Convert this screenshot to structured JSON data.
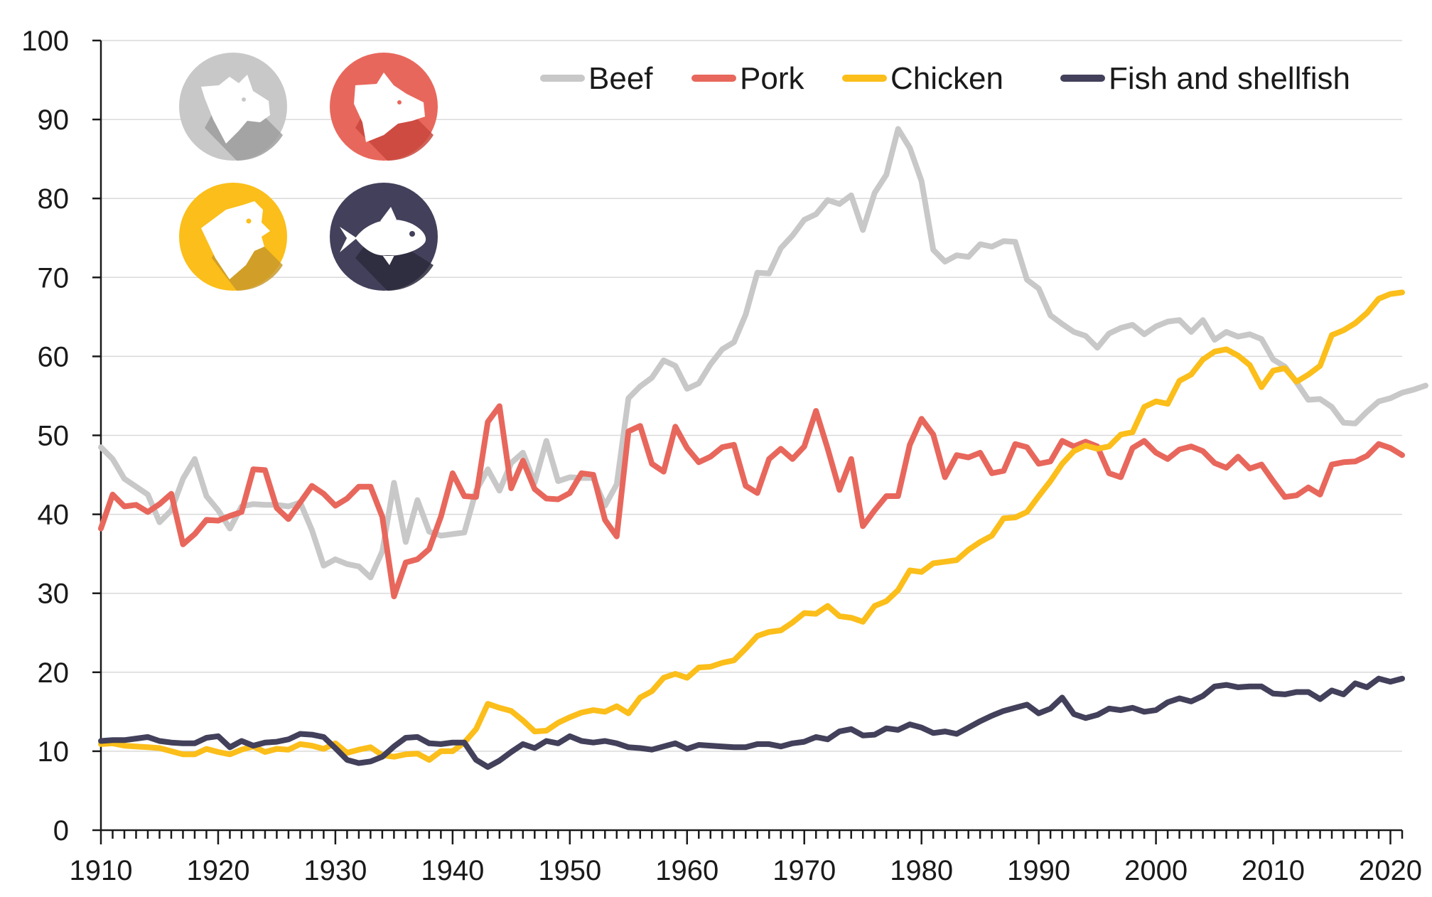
{
  "chart_data": {
    "type": "line",
    "title": "",
    "xlabel": "",
    "ylabel": "",
    "xlim": [
      1910,
      2021
    ],
    "ylim": [
      0,
      100
    ],
    "y_ticks": [
      0,
      10,
      20,
      30,
      40,
      50,
      60,
      70,
      80,
      90,
      100
    ],
    "x_ticks": [
      1910,
      1920,
      1930,
      1940,
      1950,
      1960,
      1970,
      1980,
      1990,
      2000,
      2010,
      2020
    ],
    "grid": true,
    "legend_position": "top-right",
    "series": [
      {
        "name": "Beef",
        "color": "#c8c8c8",
        "icon": "cow-icon",
        "x_start": 1910,
        "values": [
          48.5,
          47.0,
          44.5,
          43.5,
          42.5,
          39.0,
          40.5,
          44.5,
          47.0,
          42.3,
          40.5,
          38.2,
          41.0,
          41.3,
          41.2,
          41.2,
          41.0,
          41.5,
          38.0,
          33.5,
          34.3,
          33.7,
          33.4,
          32.0,
          35.3,
          44.0,
          36.5,
          41.8,
          37.8,
          37.3,
          37.5,
          37.7,
          43.0,
          45.7,
          43.0,
          46.5,
          47.8,
          44.0,
          49.3,
          44.2,
          44.7,
          44.6,
          44.6,
          41.1,
          43.8,
          54.7,
          56.2,
          57.3,
          59.5,
          58.8,
          55.9,
          56.6,
          59.0,
          60.9,
          61.8,
          65.3,
          70.6,
          70.5,
          73.7,
          75.3,
          77.3,
          78.0,
          79.8,
          79.3,
          80.4,
          76.0,
          80.7,
          83.0,
          88.8,
          86.4,
          82.2,
          73.5,
          72.0,
          72.8,
          72.6,
          74.2,
          73.9,
          74.6,
          74.5,
          69.7,
          68.6,
          65.2,
          64.1,
          63.1,
          62.6,
          61.1,
          62.9,
          63.6,
          64.0,
          62.8,
          63.8,
          64.4,
          64.6,
          63.1,
          64.6,
          62.1,
          63.1,
          62.5,
          62.8,
          62.2,
          59.6,
          58.7,
          56.7,
          54.5,
          54.6,
          53.6,
          51.6,
          51.5,
          53.0,
          54.3,
          54.7,
          55.4,
          55.8,
          56.3
        ]
      },
      {
        "name": "Pork",
        "color": "#e8675c",
        "icon": "pig-icon",
        "x_start": 1910,
        "values": [
          38.2,
          42.5,
          41.0,
          41.2,
          40.3,
          41.3,
          42.6,
          36.2,
          37.5,
          39.3,
          39.2,
          39.8,
          40.3,
          45.7,
          45.6,
          40.8,
          39.4,
          41.5,
          43.6,
          42.6,
          41.1,
          42.0,
          43.5,
          43.5,
          39.7,
          29.6,
          33.9,
          34.3,
          35.6,
          39.7,
          45.2,
          42.3,
          42.2,
          51.7,
          53.7,
          43.3,
          46.8,
          43.2,
          42.0,
          41.9,
          42.7,
          45.2,
          45.0,
          39.3,
          37.2,
          50.5,
          51.2,
          46.4,
          45.4,
          51.1,
          48.4,
          46.6,
          47.3,
          48.5,
          48.8,
          43.6,
          42.7,
          47.0,
          48.3,
          47.0,
          48.6,
          53.1,
          48.3,
          43.1,
          47.0,
          38.5,
          40.5,
          42.3,
          42.3,
          48.8,
          52.1,
          50.1,
          44.7,
          47.5,
          47.2,
          47.8,
          45.2,
          45.5,
          48.9,
          48.5,
          46.4,
          46.7,
          49.3,
          48.6,
          49.2,
          48.6,
          45.2,
          44.7,
          48.4,
          49.3,
          47.8,
          47.0,
          48.2,
          48.6,
          48.0,
          46.5,
          45.9,
          47.3,
          45.8,
          46.3,
          44.2,
          42.2,
          42.4,
          43.4,
          42.5,
          46.3,
          46.6,
          46.7,
          47.4,
          48.9,
          48.4,
          47.5
        ]
      },
      {
        "name": "Chicken",
        "color": "#fbbe1a",
        "icon": "chicken-icon",
        "x_start": 1910,
        "values": [
          10.9,
          11.0,
          10.7,
          10.6,
          10.5,
          10.4,
          10.0,
          9.6,
          9.6,
          10.3,
          9.9,
          9.6,
          10.2,
          10.6,
          9.9,
          10.3,
          10.2,
          10.9,
          10.7,
          10.3,
          11.0,
          9.8,
          10.2,
          10.5,
          9.5,
          9.3,
          9.6,
          9.7,
          8.9,
          10.0,
          10.0,
          11.1,
          12.8,
          16.0,
          15.5,
          15.1,
          13.9,
          12.5,
          12.6,
          13.6,
          14.3,
          14.9,
          15.2,
          15.0,
          15.7,
          14.8,
          16.8,
          17.6,
          19.3,
          19.8,
          19.3,
          20.6,
          20.7,
          21.2,
          21.5,
          23.0,
          24.6,
          25.1,
          25.3,
          26.3,
          27.5,
          27.4,
          28.4,
          27.1,
          26.9,
          26.4,
          28.4,
          29.0,
          30.4,
          32.9,
          32.7,
          33.8,
          34.0,
          34.2,
          35.5,
          36.5,
          37.3,
          39.5,
          39.6,
          40.3,
          42.3,
          44.2,
          46.4,
          48.0,
          48.7,
          48.3,
          48.6,
          50.1,
          50.4,
          53.6,
          54.3,
          54.0,
          56.9,
          57.7,
          59.6,
          60.6,
          60.9,
          60.1,
          58.9,
          56.1,
          58.2,
          58.5,
          56.8,
          57.7,
          58.8,
          62.7,
          63.3,
          64.2,
          65.5,
          67.3,
          67.9,
          68.1
        ]
      },
      {
        "name": "Fish and shellfish",
        "color": "#42405a",
        "icon": "fish-icon",
        "x_start": 1910,
        "values": [
          11.3,
          11.4,
          11.4,
          11.6,
          11.8,
          11.3,
          11.1,
          11.0,
          11.0,
          11.7,
          11.9,
          10.5,
          11.3,
          10.7,
          11.1,
          11.2,
          11.5,
          12.2,
          12.1,
          11.8,
          10.4,
          8.9,
          8.5,
          8.7,
          9.3,
          10.6,
          11.7,
          11.8,
          11.0,
          10.9,
          11.1,
          11.1,
          8.9,
          8.0,
          8.8,
          9.9,
          10.9,
          10.4,
          11.3,
          11.0,
          11.9,
          11.3,
          11.1,
          11.3,
          11.0,
          10.5,
          10.4,
          10.2,
          10.6,
          11.0,
          10.3,
          10.8,
          10.7,
          10.6,
          10.5,
          10.5,
          10.9,
          10.9,
          10.6,
          11.0,
          11.2,
          11.8,
          11.5,
          12.5,
          12.8,
          12.0,
          12.1,
          12.9,
          12.7,
          13.4,
          13.0,
          12.3,
          12.5,
          12.2,
          13.0,
          13.8,
          14.5,
          15.1,
          15.5,
          15.9,
          14.8,
          15.4,
          16.8,
          14.7,
          14.2,
          14.6,
          15.4,
          15.2,
          15.5,
          15.0,
          15.2,
          16.2,
          16.7,
          16.3,
          17.0,
          18.2,
          18.4,
          18.1,
          18.2,
          18.2,
          17.3,
          17.2,
          17.5,
          17.5,
          16.6,
          17.7,
          17.2,
          18.6,
          18.1,
          19.2,
          18.8,
          19.2
        ]
      }
    ]
  }
}
